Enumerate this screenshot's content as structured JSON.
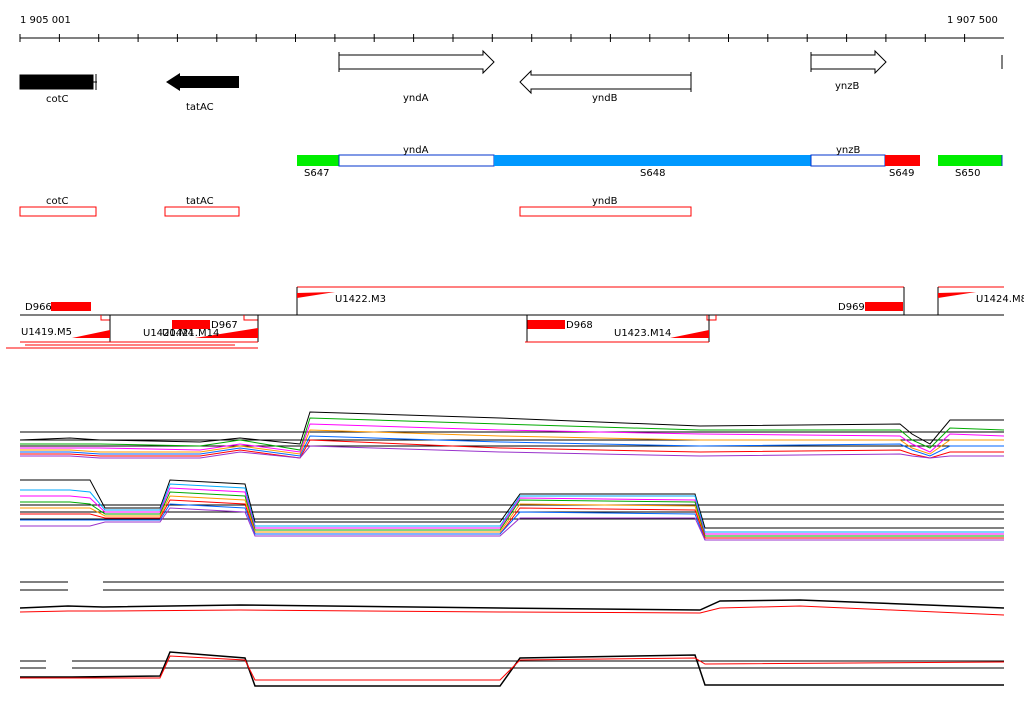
{
  "ruler": {
    "start_label": "1 905 001",
    "end_label": "1 907 500"
  },
  "genes": [
    {
      "name": "cotC",
      "strand": "-",
      "filled": true,
      "label": "cotC"
    },
    {
      "name": "tatAC",
      "strand": "-",
      "filled": true,
      "label": "tatAC"
    },
    {
      "name": "yndA",
      "strand": "+",
      "filled": false,
      "label": "yndA"
    },
    {
      "name": "yndB",
      "strand": "-",
      "filled": false,
      "label": "yndB"
    },
    {
      "name": "ynzB",
      "strand": "+",
      "filled": false,
      "label": "ynzB"
    }
  ],
  "segments": {
    "labels": [
      "S647",
      "S648",
      "S649",
      "S650"
    ],
    "gene_labels": [
      "yndA",
      "ynzB"
    ],
    "colors": {
      "S647": "#00ee00",
      "S648": "#0099ff",
      "S649": "#ff0000",
      "S650": "#00ee00"
    }
  },
  "boxes": [
    "cotC",
    "tatAC",
    "yndB"
  ],
  "features": {
    "labels": [
      "D966",
      "D967",
      "D968",
      "D969",
      "U1422.M3",
      "U1424.M8",
      "U1419.M5",
      "U1420.M4",
      "U1421.M14",
      "U1423.M14"
    ]
  },
  "colors": {
    "feature": "#ff0000",
    "gene_fill": "#000000"
  }
}
